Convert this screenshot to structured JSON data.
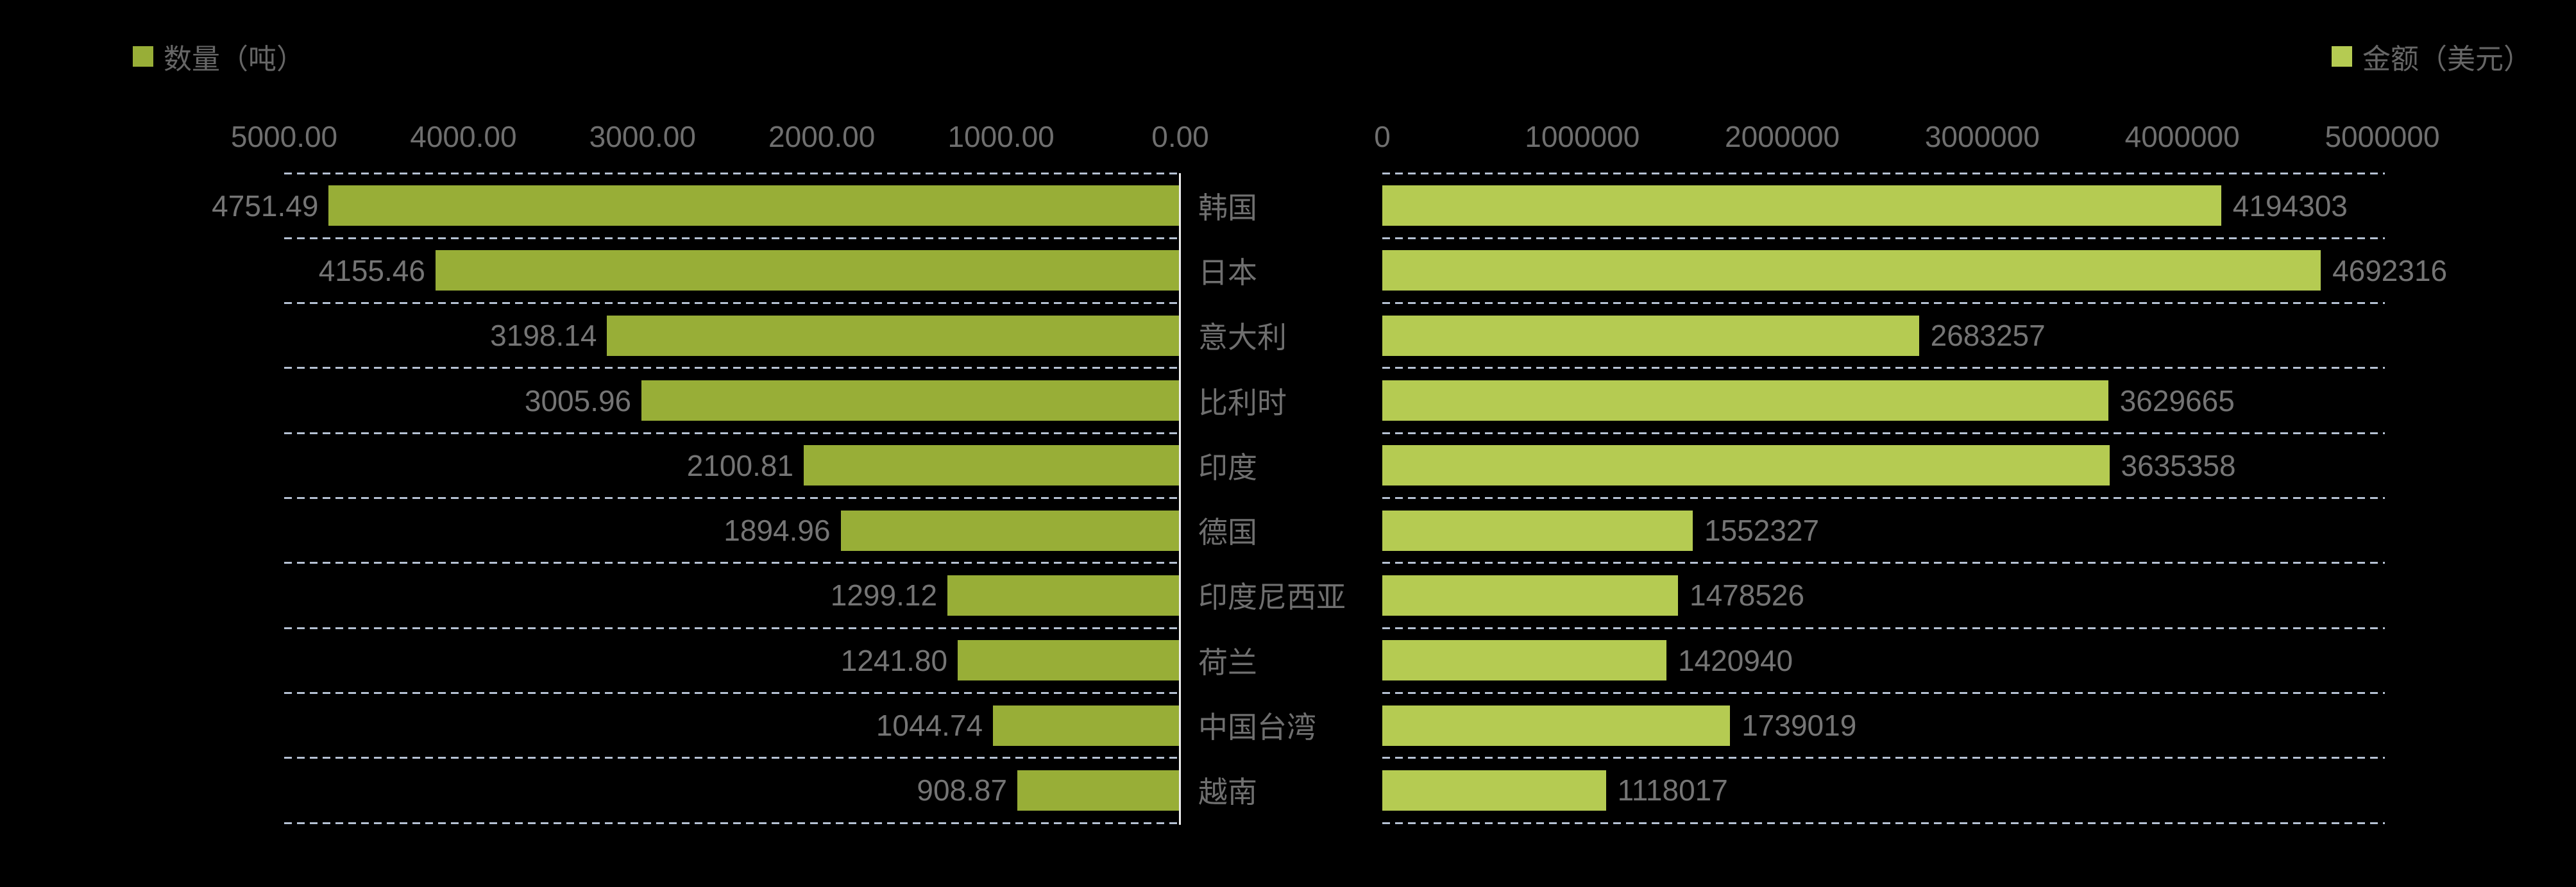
{
  "legend_left": {
    "label": "数量（吨）",
    "color": "#98AE37"
  },
  "legend_right": {
    "label": "金额（美元）",
    "color": "#B5CB52"
  },
  "chart_data": {
    "type": "bar",
    "orientation": "horizontal",
    "background": "#000000",
    "grid": "dashed-horizontal",
    "gridline_color": "#B5C1D3",
    "categories": [
      "韩国",
      "日本",
      "意大利",
      "比利时",
      "印度",
      "德国",
      "印度尼西亚",
      "荷兰",
      "中国台湾",
      "越南"
    ],
    "series": [
      {
        "name": "数量（吨）",
        "color": "#98AE37",
        "direction": "right-to-left",
        "legend_position": "top-left",
        "xlim": [
          0,
          5000
        ],
        "axis_ticks": [
          "5000.00",
          "4000.00",
          "3000.00",
          "2000.00",
          "1000.00",
          "0.00"
        ],
        "values": [
          "4751.49",
          "4155.46",
          "3198.14",
          "3005.96",
          "2100.81",
          "1894.96",
          "1299.12",
          "1241.80",
          "1044.74",
          "908.87"
        ]
      },
      {
        "name": "金额（美元）",
        "color": "#B5CB52",
        "direction": "left-to-right",
        "legend_position": "top-right",
        "xlim": [
          0,
          5000000
        ],
        "axis_ticks": [
          "0",
          "1000000",
          "2000000",
          "3000000",
          "4000000",
          "5000000"
        ],
        "values": [
          "4194303",
          "4692316",
          "2683257",
          "3629665",
          "3635358",
          "1552327",
          "1478526",
          "1420940",
          "1739019",
          "1118017"
        ]
      }
    ]
  }
}
